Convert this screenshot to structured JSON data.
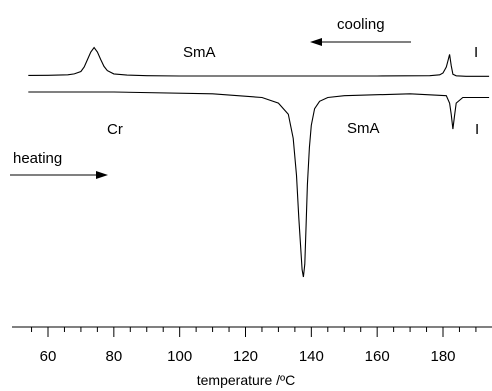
{
  "chart_data": {
    "type": "line",
    "title": "",
    "xlabel": "temperature /ºC",
    "ylabel": "",
    "xlim": [
      54,
      194
    ],
    "x_ticks": [
      "60",
      "80",
      "100",
      "120",
      "140",
      "160",
      "180"
    ],
    "y_axis_visible": false,
    "grid": false,
    "legend": "none",
    "annotations": {
      "cooling_label": "cooling",
      "heating_label": "heating",
      "smA_top": "SmA",
      "i_top": "I",
      "cr_bottom": "Cr",
      "smA_bottom": "SmA",
      "i_bottom": "I"
    },
    "series": [
      {
        "x": [
          54,
          60,
          66,
          68,
          70,
          71,
          72,
          73,
          74,
          75,
          76,
          77,
          78,
          80,
          84,
          90,
          100,
          120,
          140,
          160,
          176,
          179,
          180,
          181,
          181.5,
          182,
          182.5,
          183,
          184,
          187,
          194
        ],
        "y": [
          0.02,
          0.025,
          0.04,
          0.07,
          0.15,
          0.3,
          0.55,
          0.8,
          0.95,
          0.8,
          0.55,
          0.32,
          0.18,
          0.07,
          0.03,
          0.01,
          0,
          0,
          0,
          0,
          0.01,
          0.04,
          0.1,
          0.3,
          0.5,
          0.72,
          0.35,
          0.06,
          0.005,
          -0.01,
          -0.01
        ]
      },
      {
        "x": [
          54,
          80,
          110,
          125,
          130,
          133,
          134.5,
          135.5,
          136.2,
          136.8,
          137.2,
          137.6,
          138,
          138.4,
          138.8,
          139.4,
          140,
          141,
          142.5,
          145,
          150,
          170,
          181,
          182,
          182.5,
          183,
          183.5,
          184,
          186,
          194
        ],
        "y": [
          0,
          0,
          -0.01,
          -0.03,
          -0.06,
          -0.12,
          -0.25,
          -0.45,
          -0.68,
          -0.85,
          -0.96,
          -1.0,
          -0.93,
          -0.72,
          -0.5,
          -0.3,
          -0.18,
          -0.09,
          -0.05,
          -0.03,
          -0.02,
          -0.01,
          -0.02,
          -0.06,
          -0.12,
          -0.2,
          -0.13,
          -0.06,
          -0.03,
          -0.03
        ]
      }
    ]
  }
}
